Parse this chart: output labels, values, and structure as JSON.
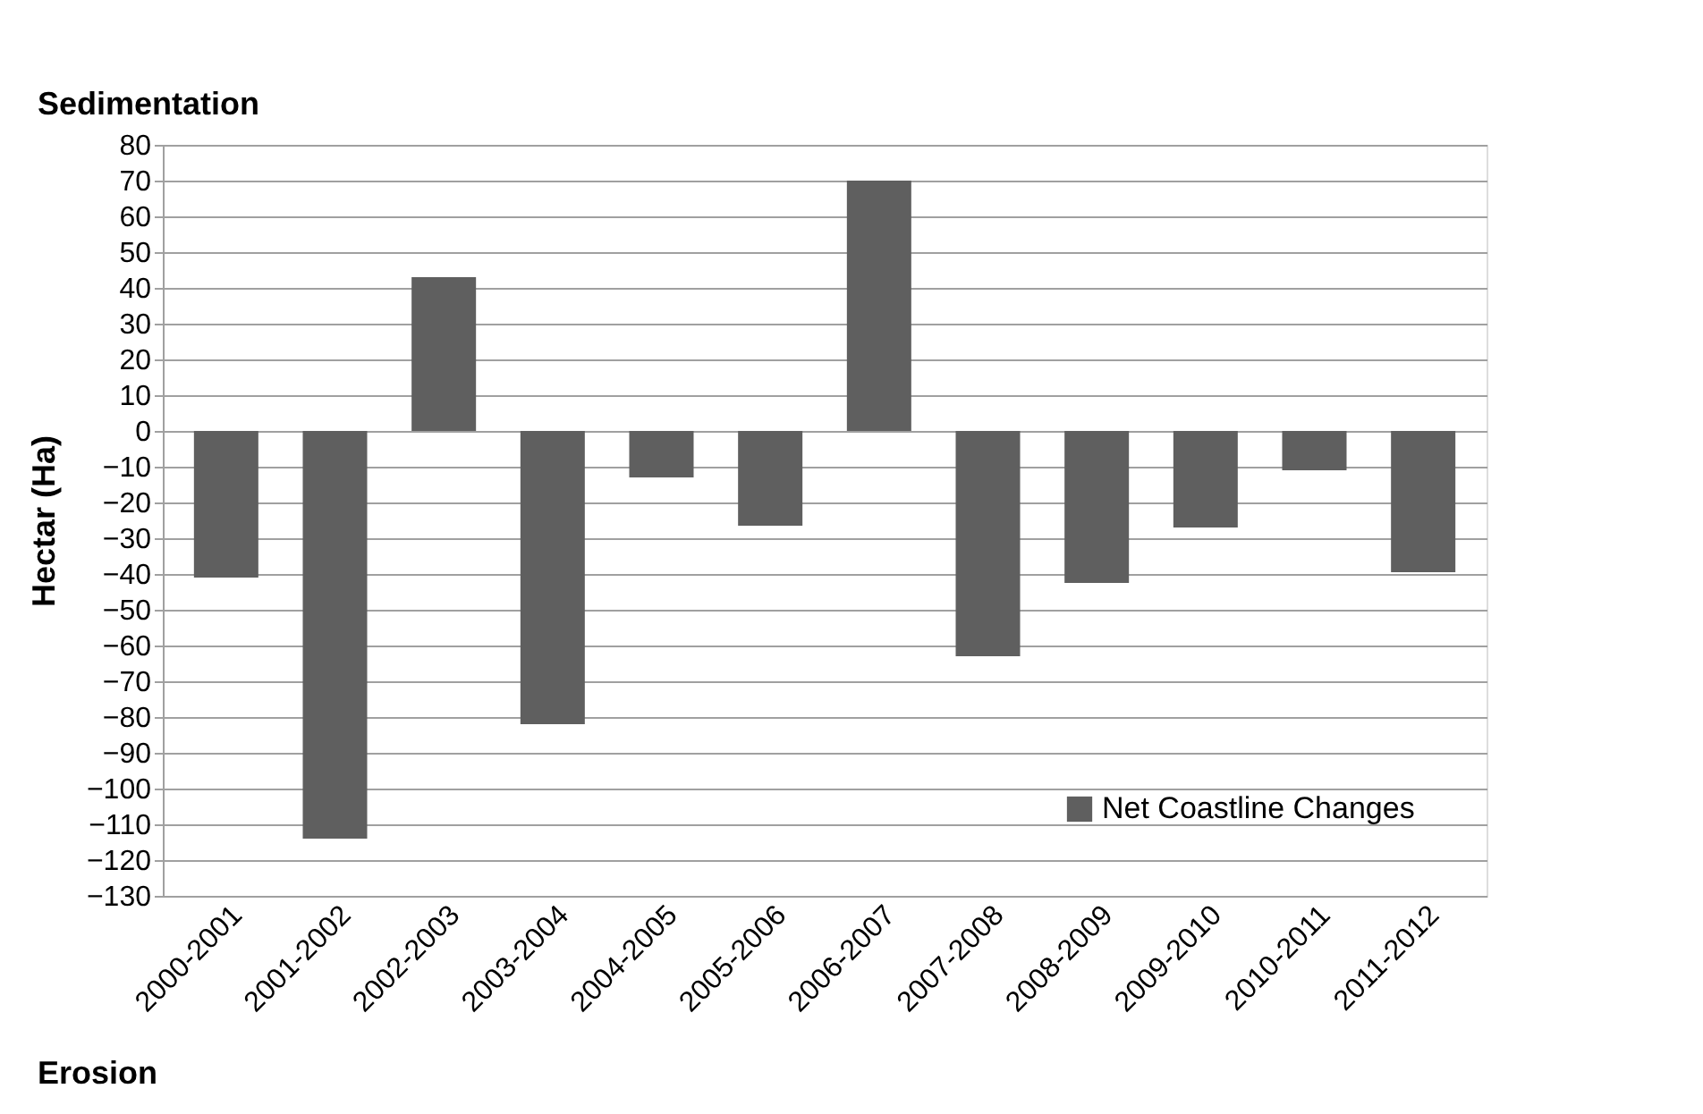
{
  "chart_data": {
    "type": "bar",
    "categories": [
      "2000-2001",
      "2001-2002",
      "2002-2003",
      "2003-2004",
      "2004-2005",
      "2005-2006",
      "2006-2007",
      "2007-2008",
      "2008-2009",
      "2009-2010",
      "2010-2011",
      "2011-2012"
    ],
    "series": [
      {
        "name": "Net Coastline Changes",
        "color": "#5f5f5f",
        "values": [
          -41,
          -114,
          43,
          -82,
          -13,
          -26.5,
          70,
          -63,
          -42.5,
          -27,
          -11,
          -39.5
        ]
      }
    ],
    "ylabel": "Hectar (Ha)",
    "annotations": [
      "Sedimentation",
      "Erosion"
    ],
    "ylim": [
      -130,
      80
    ],
    "yticks": [
      -130,
      -120,
      -110,
      -100,
      -90,
      -80,
      -70,
      -60,
      -50,
      -40,
      -30,
      -20,
      -10,
      0,
      10,
      20,
      30,
      40,
      50,
      60,
      70,
      80
    ],
    "grid": "y",
    "legend": "bottom right"
  }
}
